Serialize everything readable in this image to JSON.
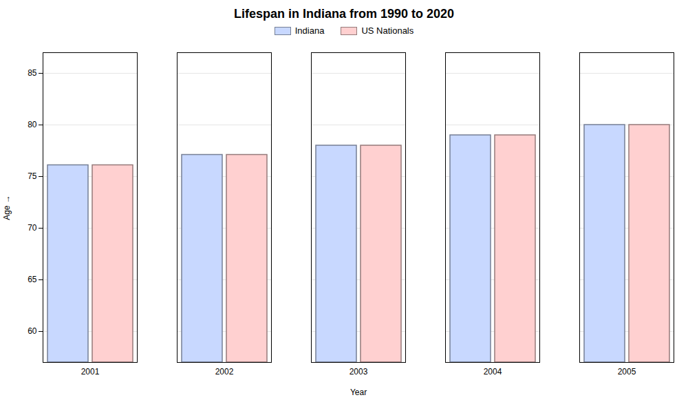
{
  "chart_data": {
    "type": "bar",
    "title": "Lifespan in Indiana from 1990 to 2020",
    "xlabel": "Year",
    "ylabel": "Age",
    "categories": [
      "2001",
      "2002",
      "2003",
      "2004",
      "2005"
    ],
    "series": [
      {
        "name": "Indiana",
        "color": "#c8d8ff",
        "values": [
          76.1,
          77.1,
          78.0,
          79.0,
          80.0
        ]
      },
      {
        "name": "US Nationals",
        "color": "#ffd0d0",
        "values": [
          76.1,
          77.1,
          78.0,
          79.0,
          80.0
        ]
      }
    ],
    "ylim": [
      57,
      87
    ],
    "yticks": [
      60,
      65,
      70,
      75,
      80,
      85
    ],
    "grid": true,
    "legend": "top"
  }
}
